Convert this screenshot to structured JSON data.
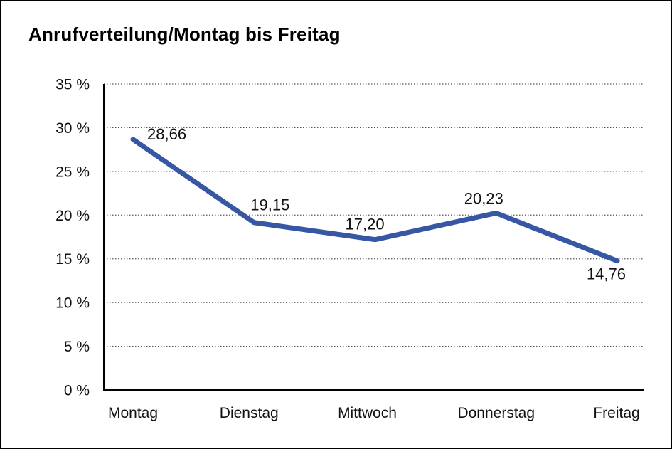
{
  "chart_data": {
    "type": "line",
    "title": "Anrufverteilung/Montag bis Freitag",
    "categories": [
      "Montag",
      "Dienstag",
      "Mittwoch",
      "Donnerstag",
      "Freitag"
    ],
    "series": [
      {
        "name": "Anrufverteilung",
        "values": [
          28.66,
          19.15,
          17.2,
          20.23,
          14.76
        ]
      }
    ],
    "value_labels": [
      "28,66",
      "19,15",
      "17,20",
      "20,23",
      "14,76"
    ],
    "xlabel": "",
    "ylabel": "",
    "ylim": [
      0,
      35
    ],
    "y_ticks": [
      0,
      5,
      10,
      15,
      20,
      25,
      30,
      35
    ],
    "y_tick_labels": [
      "0 %",
      "5 %",
      "10 %",
      "15 %",
      "20 %",
      "25 %",
      "30 %",
      "35 %"
    ],
    "grid": "horizontal-dotted",
    "legend": "none",
    "colors": {
      "line": "#3757A5",
      "axis": "#000000",
      "gridline": "#555555",
      "text": "#111111"
    }
  }
}
